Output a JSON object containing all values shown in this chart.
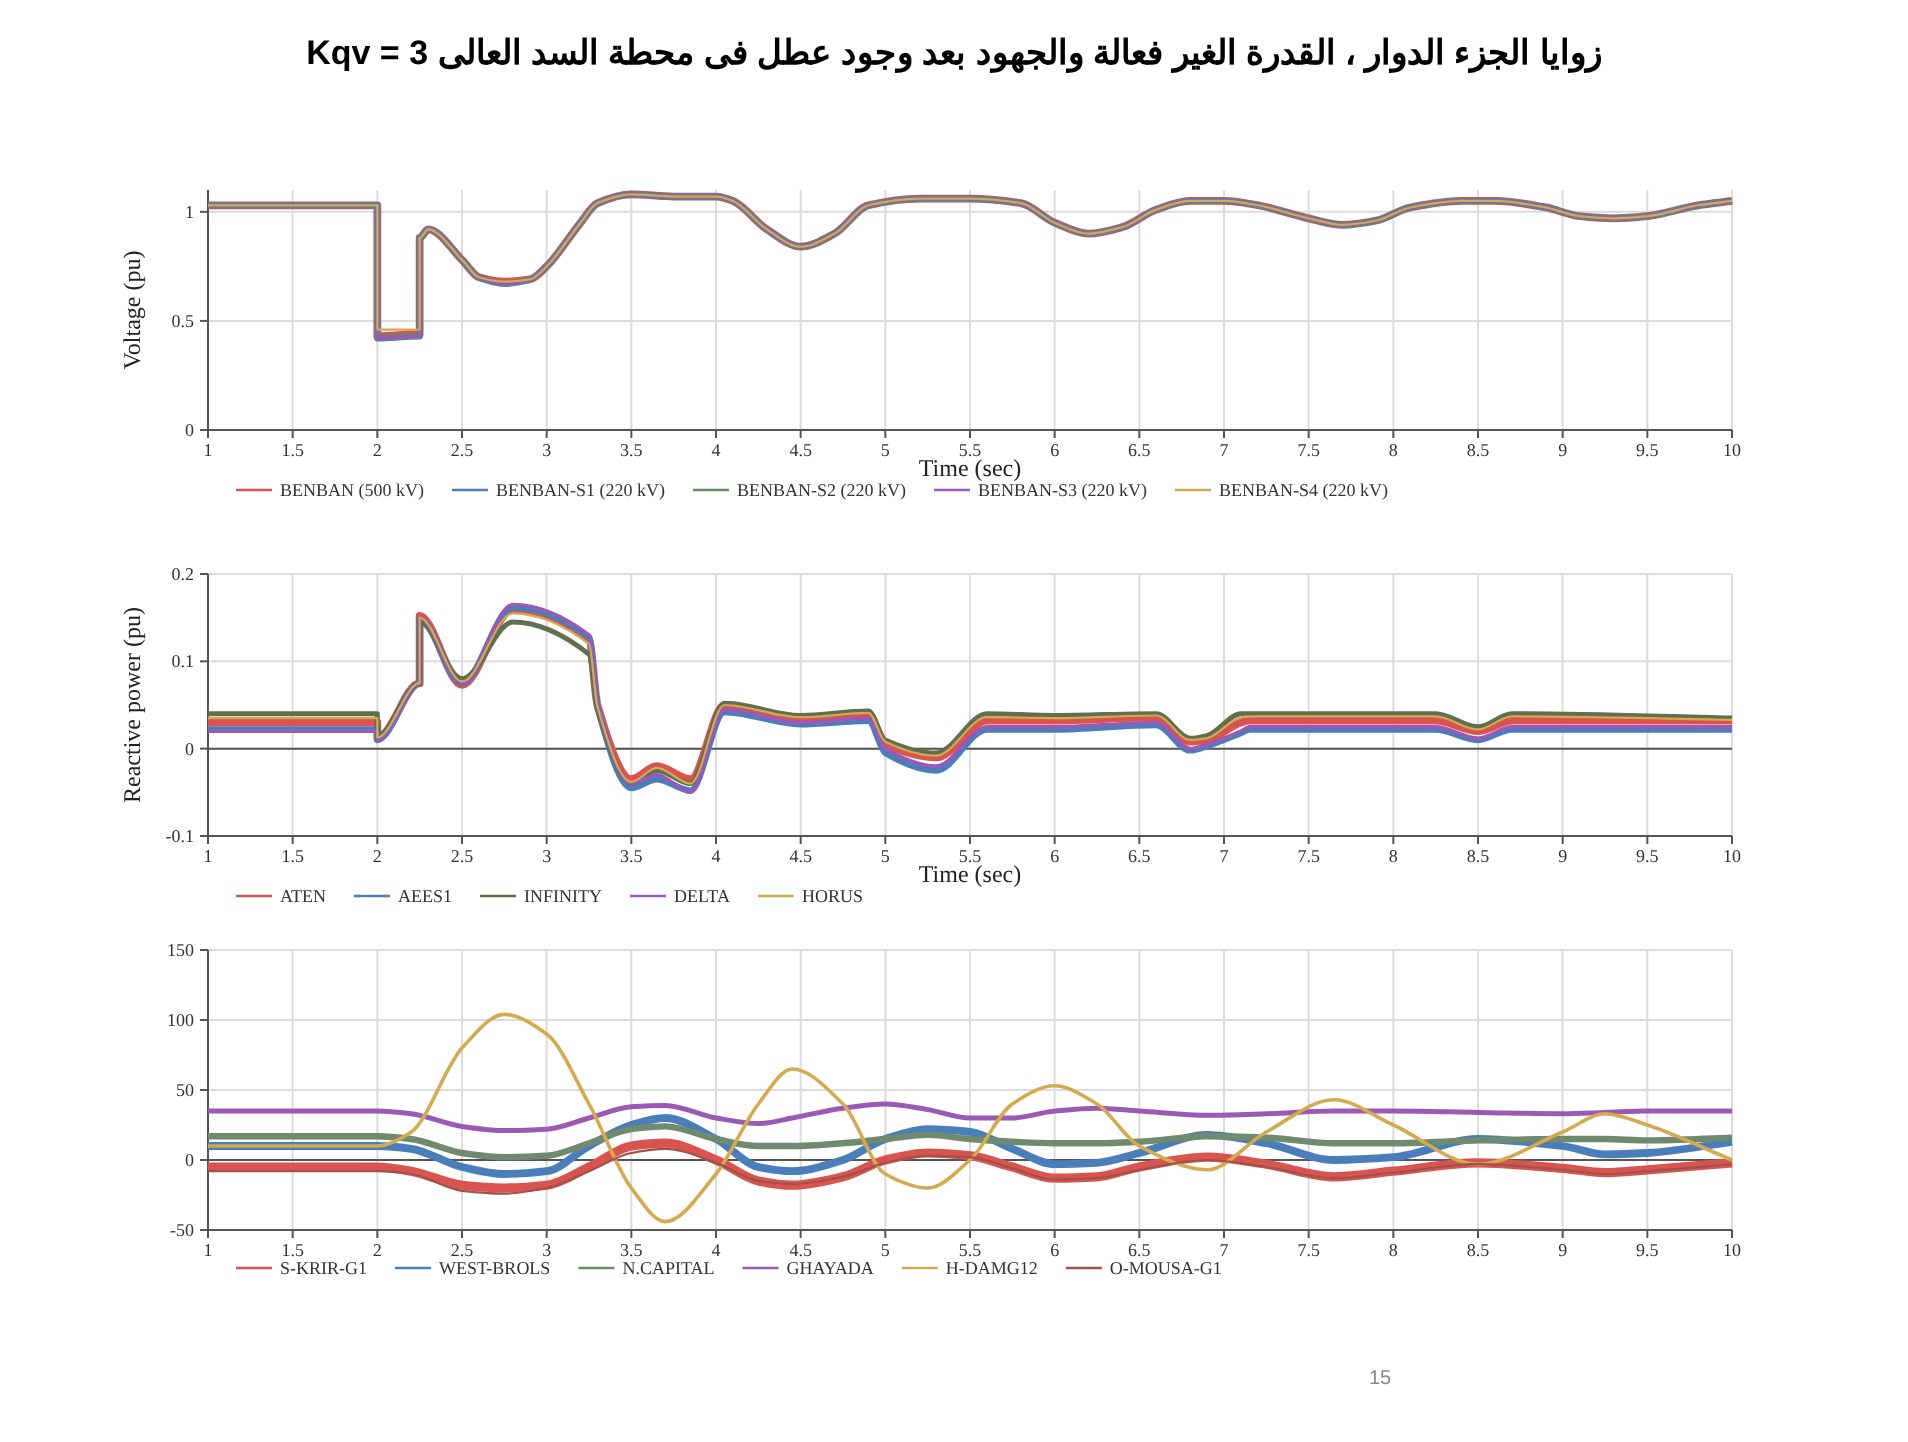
{
  "chart_data": [
    {
      "type": "line",
      "title": "زوايا الجزء الدوار ، القدرة الغير فعالة والجهود بعد وجود عطل فى محطة السد العالى Kqv = 3",
      "xlabel": "Time (sec)",
      "ylabel": "Voltage (pu)",
      "xlim": [
        1,
        10
      ],
      "ylim": [
        0,
        1.1
      ],
      "xticks": [
        1,
        1.5,
        2,
        2.5,
        3,
        3.5,
        4,
        4.5,
        5,
        5.5,
        6,
        6.5,
        7,
        7.5,
        8,
        8.5,
        9,
        9.5,
        10
      ],
      "yticks": [
        0,
        0.5,
        1
      ],
      "grid": true,
      "legend": "bottom",
      "x": [
        1,
        2,
        2,
        2.25,
        2.25,
        2.3,
        2.5,
        2.6,
        2.75,
        2.9,
        3.0,
        3.2,
        3.3,
        3.5,
        3.75,
        4.0,
        4.1,
        4.3,
        4.5,
        4.7,
        4.9,
        5.2,
        5.5,
        5.8,
        6.0,
        6.2,
        6.4,
        6.6,
        6.8,
        7.0,
        7.2,
        7.5,
        7.7,
        7.9,
        8.1,
        8.4,
        8.6,
        8.9,
        9.1,
        9.3,
        9.5,
        9.8,
        10
      ],
      "series": [
        {
          "name": "BENBAN (500 kV)",
          "color": "#d9534f",
          "values": [
            1.03,
            1.03,
            0.43,
            0.44,
            0.88,
            0.92,
            0.78,
            0.7,
            0.68,
            0.69,
            0.75,
            0.95,
            1.04,
            1.08,
            1.07,
            1.07,
            1.05,
            0.92,
            0.84,
            0.9,
            1.03,
            1.06,
            1.06,
            1.04,
            0.95,
            0.9,
            0.93,
            1.01,
            1.05,
            1.05,
            1.03,
            0.97,
            0.94,
            0.96,
            1.02,
            1.05,
            1.05,
            1.02,
            0.98,
            0.97,
            0.98,
            1.03,
            1.05
          ]
        },
        {
          "name": "BENBAN-S1 (220 kV)",
          "color": "#4a7ebb",
          "values": [
            1.03,
            1.03,
            0.42,
            0.43,
            0.88,
            0.92,
            0.78,
            0.7,
            0.67,
            0.69,
            0.75,
            0.95,
            1.04,
            1.08,
            1.07,
            1.07,
            1.05,
            0.92,
            0.84,
            0.9,
            1.03,
            1.06,
            1.06,
            1.04,
            0.95,
            0.9,
            0.93,
            1.01,
            1.05,
            1.05,
            1.03,
            0.97,
            0.94,
            0.96,
            1.02,
            1.05,
            1.05,
            1.02,
            0.98,
            0.97,
            0.98,
            1.03,
            1.05
          ]
        },
        {
          "name": "BENBAN-S2 (220 kV)",
          "color": "#5f8f5f",
          "values": [
            1.03,
            1.03,
            0.42,
            0.43,
            0.88,
            0.92,
            0.78,
            0.7,
            0.67,
            0.69,
            0.75,
            0.95,
            1.04,
            1.08,
            1.07,
            1.07,
            1.05,
            0.92,
            0.84,
            0.9,
            1.03,
            1.06,
            1.06,
            1.04,
            0.95,
            0.9,
            0.93,
            1.01,
            1.05,
            1.05,
            1.03,
            0.97,
            0.94,
            0.96,
            1.02,
            1.05,
            1.05,
            1.02,
            0.98,
            0.97,
            0.98,
            1.03,
            1.05
          ]
        },
        {
          "name": "BENBAN-S3 (220 kV)",
          "color": "#9b59b6",
          "values": [
            1.03,
            1.03,
            0.42,
            0.43,
            0.88,
            0.92,
            0.78,
            0.7,
            0.67,
            0.69,
            0.75,
            0.95,
            1.04,
            1.08,
            1.07,
            1.07,
            1.05,
            0.92,
            0.84,
            0.9,
            1.03,
            1.06,
            1.06,
            1.04,
            0.95,
            0.9,
            0.93,
            1.01,
            1.05,
            1.05,
            1.03,
            0.97,
            0.94,
            0.96,
            1.02,
            1.05,
            1.05,
            1.02,
            0.98,
            0.97,
            0.98,
            1.03,
            1.05
          ]
        },
        {
          "name": "BENBAN-S4 (220 kV)",
          "color": "#d4aa50",
          "values": [
            1.03,
            1.03,
            0.46,
            0.46,
            0.88,
            0.92,
            0.78,
            0.7,
            0.68,
            0.69,
            0.75,
            0.95,
            1.04,
            1.08,
            1.07,
            1.07,
            1.05,
            0.92,
            0.84,
            0.9,
            1.03,
            1.06,
            1.06,
            1.04,
            0.95,
            0.9,
            0.93,
            1.01,
            1.05,
            1.05,
            1.03,
            0.97,
            0.94,
            0.96,
            1.02,
            1.05,
            1.05,
            1.02,
            0.98,
            0.97,
            0.98,
            1.03,
            1.05
          ]
        }
      ]
    },
    {
      "type": "line",
      "xlabel": "Time (sec)",
      "ylabel": "Reactive power (pu)",
      "xlim": [
        1,
        10
      ],
      "ylim": [
        -0.1,
        0.2
      ],
      "xticks": [
        1,
        1.5,
        2,
        2.5,
        3,
        3.5,
        4,
        4.5,
        5,
        5.5,
        6,
        6.5,
        7,
        7.5,
        8,
        8.5,
        9,
        9.5,
        10
      ],
      "yticks": [
        -0.1,
        0,
        0.1,
        0.2
      ],
      "grid": true,
      "legend": "bottom",
      "x": [
        1,
        2,
        2,
        2.25,
        2.25,
        2.5,
        2.8,
        3.25,
        3.3,
        3.5,
        3.65,
        3.85,
        4.05,
        4.5,
        4.9,
        5.0,
        5.3,
        5.6,
        6,
        6.6,
        6.8,
        6.9,
        7.1,
        7.15,
        8.25,
        8.5,
        8.7,
        10
      ],
      "series": [
        {
          "name": "ATEN",
          "color": "#d9534f",
          "values": [
            0.03,
            0.03,
            0.012,
            0.075,
            0.152,
            0.073,
            0.16,
            0.125,
            0.05,
            -0.035,
            -0.02,
            -0.035,
            0.05,
            0.035,
            0.04,
            0.005,
            -0.01,
            0.032,
            0.032,
            0.036,
            0.008,
            0.01,
            0.03,
            0.032,
            0.032,
            0.02,
            0.032,
            0.032
          ]
        },
        {
          "name": "AEES1",
          "color": "#4a7ebb",
          "values": [
            0.022,
            0.022,
            0.01,
            0.075,
            0.148,
            0.075,
            0.162,
            0.128,
            0.048,
            -0.045,
            -0.035,
            -0.048,
            0.042,
            0.028,
            0.032,
            -0.005,
            -0.025,
            0.022,
            0.022,
            0.027,
            -0.002,
            0.003,
            0.018,
            0.022,
            0.022,
            0.01,
            0.022,
            0.022
          ]
        },
        {
          "name": "INFINITY",
          "color": "#5f6f4f",
          "values": [
            0.04,
            0.04,
            0.015,
            0.075,
            0.145,
            0.08,
            0.145,
            0.108,
            0.045,
            -0.04,
            -0.025,
            -0.04,
            0.052,
            0.038,
            0.043,
            0.01,
            -0.005,
            0.04,
            0.038,
            0.04,
            0.012,
            0.015,
            0.04,
            0.04,
            0.04,
            0.025,
            0.04,
            0.035
          ]
        },
        {
          "name": "DELTA",
          "color": "#9b59b6",
          "values": [
            0.02,
            0.02,
            0.01,
            0.075,
            0.15,
            0.075,
            0.165,
            0.13,
            0.05,
            -0.04,
            -0.03,
            -0.05,
            0.045,
            0.03,
            0.035,
            0.0,
            -0.02,
            0.025,
            0.025,
            0.03,
            0.0,
            0.005,
            0.02,
            0.025,
            0.025,
            0.012,
            0.025,
            0.025
          ]
        },
        {
          "name": "HORUS",
          "color": "#d4aa50",
          "values": [
            0.035,
            0.035,
            0.013,
            0.075,
            0.15,
            0.077,
            0.155,
            0.12,
            0.048,
            -0.038,
            -0.022,
            -0.04,
            0.05,
            0.036,
            0.041,
            0.008,
            -0.008,
            0.036,
            0.035,
            0.038,
            0.01,
            0.012,
            0.036,
            0.037,
            0.037,
            0.022,
            0.037,
            0.033
          ]
        }
      ]
    },
    {
      "type": "line",
      "xlim": [
        1,
        10
      ],
      "ylim": [
        -50,
        150
      ],
      "xticks": [
        1,
        1.5,
        2,
        2.5,
        3,
        3.5,
        4,
        4.5,
        5,
        5.5,
        6,
        6.5,
        7,
        7.5,
        8,
        8.5,
        9,
        9.5,
        10
      ],
      "yticks": [
        -50,
        0,
        50,
        100,
        150
      ],
      "grid": true,
      "legend": "bottom",
      "annotations": [
        "15"
      ],
      "x": [
        1,
        2,
        2.2,
        2.5,
        2.75,
        3,
        3.25,
        3.5,
        3.7,
        4,
        4.25,
        4.45,
        4.75,
        5,
        5.25,
        5.5,
        5.75,
        6,
        6.25,
        6.5,
        6.9,
        7.25,
        7.65,
        8,
        8.5,
        9,
        9.25,
        9.5,
        10
      ],
      "series": [
        {
          "name": "S-KRIR-G1",
          "color": "#d9534f",
          "values": [
            -5,
            -5,
            -8,
            -18,
            -20,
            -18,
            -5,
            10,
            12,
            0,
            -15,
            -18,
            -12,
            0,
            5,
            3,
            -5,
            -13,
            -12,
            -5,
            2,
            -3,
            -12,
            -8,
            -2,
            -6,
            -9,
            -7,
            -2
          ]
        },
        {
          "name": "WEST-BROLS",
          "color": "#4a7ebb",
          "values": [
            10,
            10,
            8,
            -5,
            -10,
            -8,
            10,
            25,
            30,
            15,
            -5,
            -8,
            0,
            15,
            22,
            20,
            8,
            -3,
            -2,
            5,
            18,
            12,
            0,
            2,
            15,
            10,
            4,
            5,
            13
          ]
        },
        {
          "name": "N.CAPITAL",
          "color": "#6f8a6f",
          "values": [
            17,
            17,
            15,
            5,
            2,
            3,
            12,
            22,
            24,
            15,
            10,
            10,
            12,
            15,
            18,
            15,
            13,
            12,
            12,
            13,
            17,
            16,
            12,
            12,
            14,
            15,
            15,
            14,
            16
          ]
        },
        {
          "name": "GHAYADA",
          "color": "#9b59b6",
          "values": [
            35,
            35,
            33,
            24,
            21,
            22,
            30,
            38,
            39,
            30,
            26,
            30,
            37,
            40,
            36,
            30,
            30,
            35,
            37,
            35,
            32,
            33,
            35,
            35,
            34,
            33,
            34,
            35,
            35
          ]
        },
        {
          "name": "H-DAMG12",
          "color": "#d4aa50",
          "values": [
            10,
            10,
            20,
            80,
            104,
            90,
            40,
            -20,
            -44,
            -10,
            40,
            65,
            40,
            -10,
            -20,
            0,
            40,
            53,
            40,
            10,
            -7,
            20,
            43,
            25,
            -3,
            20,
            33,
            25,
            0
          ]
        },
        {
          "name": "O-MOUSA-G1",
          "color": "#a0524a",
          "values": [
            -8,
            -8,
            -10,
            -22,
            -24,
            -20,
            -8,
            5,
            8,
            -2,
            -15,
            -17,
            -12,
            -2,
            3,
            2,
            -6,
            -14,
            -13,
            -7,
            0,
            -5,
            -13,
            -9,
            -3,
            -7,
            -10,
            -8,
            -3
          ]
        }
      ]
    }
  ]
}
